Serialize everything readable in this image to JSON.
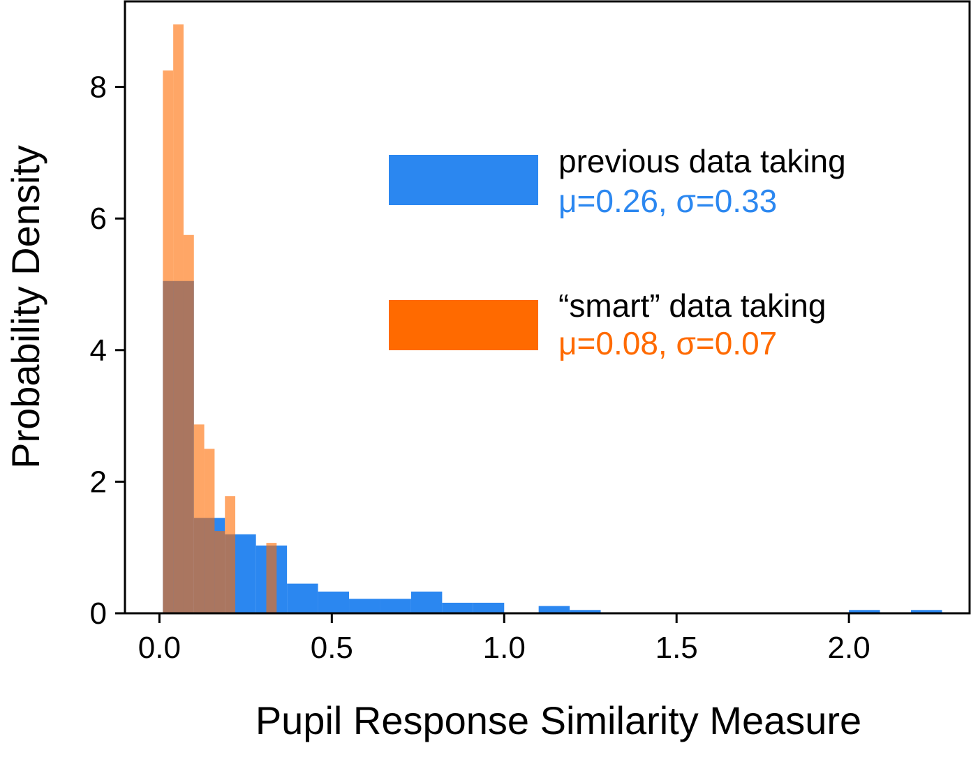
{
  "chart_data": {
    "type": "histogram",
    "title": "",
    "xlabel": "Pupil Response Similarity Measure",
    "ylabel": "Probability Density",
    "xlim": [
      -0.1,
      2.35
    ],
    "ylim": [
      0,
      9.3
    ],
    "xticks": [
      0.0,
      0.5,
      1.0,
      1.5,
      2.0
    ],
    "xtick_labels": [
      "0.0",
      "0.5",
      "1.0",
      "1.5",
      "2.0"
    ],
    "yticks": [
      0,
      2,
      4,
      6,
      8
    ],
    "ytick_labels": [
      "0",
      "2",
      "4",
      "6",
      "8"
    ],
    "legend_position": "upper-right",
    "series": [
      {
        "name": "previous data taking",
        "stats": "μ=0.26, σ=0.33",
        "color": "#2b87f0",
        "opacity": 1.0,
        "bins": [
          {
            "x0": 0.01,
            "x1": 0.1,
            "value": 5.05
          },
          {
            "x0": 0.1,
            "x1": 0.19,
            "value": 1.45
          },
          {
            "x0": 0.19,
            "x1": 0.28,
            "value": 1.2
          },
          {
            "x0": 0.28,
            "x1": 0.37,
            "value": 1.03
          },
          {
            "x0": 0.37,
            "x1": 0.46,
            "value": 0.45
          },
          {
            "x0": 0.46,
            "x1": 0.55,
            "value": 0.33
          },
          {
            "x0": 0.55,
            "x1": 0.64,
            "value": 0.22
          },
          {
            "x0": 0.64,
            "x1": 0.73,
            "value": 0.22
          },
          {
            "x0": 0.73,
            "x1": 0.82,
            "value": 0.33
          },
          {
            "x0": 0.82,
            "x1": 0.91,
            "value": 0.16
          },
          {
            "x0": 0.91,
            "x1": 1.0,
            "value": 0.16
          },
          {
            "x0": 1.1,
            "x1": 1.19,
            "value": 0.11
          },
          {
            "x0": 1.19,
            "x1": 1.28,
            "value": 0.05
          },
          {
            "x0": 2.0,
            "x1": 2.09,
            "value": 0.05
          },
          {
            "x0": 2.18,
            "x1": 2.27,
            "value": 0.05
          }
        ]
      },
      {
        "name": "“smart” data taking",
        "stats": "μ=0.08, σ=0.07",
        "color": "#ff6a00",
        "opacity": 0.6,
        "bins": [
          {
            "x0": 0.01,
            "x1": 0.04,
            "value": 8.25
          },
          {
            "x0": 0.04,
            "x1": 0.07,
            "value": 8.95
          },
          {
            "x0": 0.07,
            "x1": 0.1,
            "value": 5.75
          },
          {
            "x0": 0.1,
            "x1": 0.13,
            "value": 2.87
          },
          {
            "x0": 0.13,
            "x1": 0.16,
            "value": 2.5
          },
          {
            "x0": 0.16,
            "x1": 0.19,
            "value": 1.25
          },
          {
            "x0": 0.19,
            "x1": 0.22,
            "value": 1.78
          },
          {
            "x0": 0.22,
            "x1": 0.25,
            "value": 0.0
          },
          {
            "x0": 0.25,
            "x1": 0.28,
            "value": 0.0
          },
          {
            "x0": 0.28,
            "x1": 0.31,
            "value": 0.0
          },
          {
            "x0": 0.31,
            "x1": 0.34,
            "value": 1.07
          }
        ]
      }
    ]
  }
}
